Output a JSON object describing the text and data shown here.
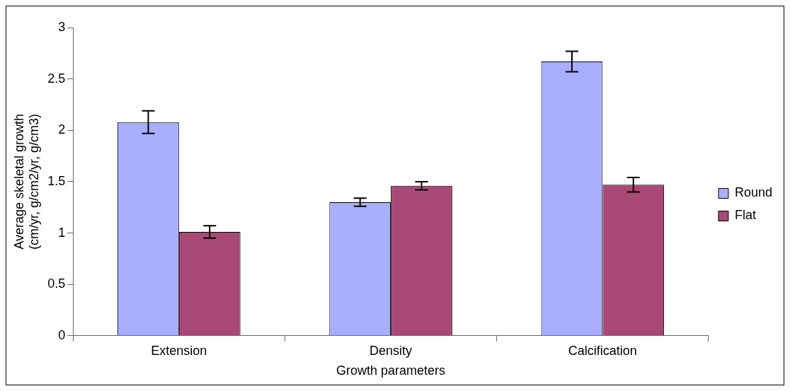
{
  "chart_data": {
    "type": "bar",
    "xlabel": "Growth parameters",
    "ylabel": "Average skeletal growth (cm/yr, g/cm2/yr, g/cm3)",
    "categories": [
      "Extension",
      "Density",
      "Calcification"
    ],
    "series": [
      {
        "name": "Round",
        "color": "#aaaeff",
        "values": [
          2.08,
          1.3,
          2.67
        ],
        "errors": [
          0.11,
          0.04,
          0.1
        ]
      },
      {
        "name": "Flat",
        "color": "#a94a76",
        "values": [
          1.01,
          1.46,
          1.47
        ],
        "errors": [
          0.06,
          0.04,
          0.07
        ]
      }
    ],
    "ylim": [
      0,
      3
    ],
    "yticks": [
      0,
      0.5,
      1,
      1.5,
      2,
      2.5,
      3
    ],
    "grid": false,
    "legend": "right"
  }
}
